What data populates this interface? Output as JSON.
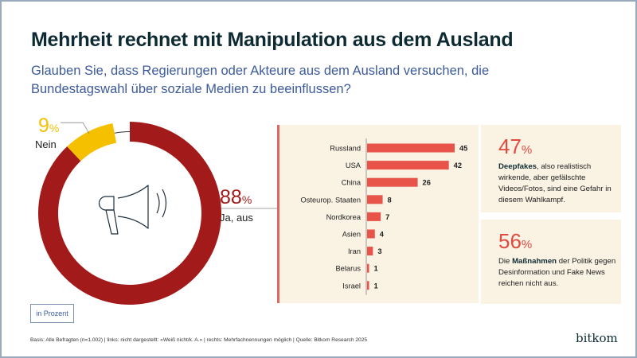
{
  "header": {
    "title": "Mehrheit rechnet mit Manipulation aus dem Ausland",
    "subtitle": "Glauben Sie, dass Regierungen oder Akteure aus dem Ausland versuchen, die Bundestagswahl über soziale Medien zu beeinflussen?"
  },
  "donut": {
    "icon": "megaphone-icon",
    "yes": {
      "value": "88",
      "pct": "%",
      "label": "Ja, aus"
    },
    "no": {
      "value": "9",
      "pct": "%",
      "label": "Nein"
    }
  },
  "cards": [
    {
      "value": "47",
      "pct": "%",
      "bold": "Deepfakes",
      "text_before": "",
      "text_after": ", also realistisch wirkende, aber gefälschte Videos/Fotos, sind eine Gefahr in diesem Wahlkampf."
    },
    {
      "value": "56",
      "pct": "%",
      "bold": "Maßnahmen",
      "text_before": "Die ",
      "text_after": " der Politik gegen Desinformation und Fake News reichen nicht aus."
    }
  ],
  "unit_label": "in Prozent",
  "footnote": "Basis: Alle Befragten (n=1.002) | links: nicht dargestellt: «Weiß nicht/k. A.» | rechts: Mehrfachnennungen möglich | Quelle: Bitkom Research 2025",
  "logo": "bitkom",
  "colors": {
    "yes": "#a31a1a",
    "no": "#f5c000",
    "bar": "#e8534a",
    "panel": "#faf2e3",
    "title": "#0e2a33",
    "subtitle": "#3d5a9a"
  },
  "chart_data": [
    {
      "type": "pie",
      "variant": "donut",
      "title": "Glauben Sie, dass Regierungen oder Akteure aus dem Ausland versuchen, die Bundestagswahl über soziale Medien zu beeinflussen?",
      "slices": [
        {
          "label": "Ja, aus",
          "value": 88,
          "color": "#a31a1a"
        },
        {
          "label": "Nein",
          "value": 9,
          "color": "#f5c000"
        },
        {
          "label": "Weiß nicht/k. A. (nicht dargestellt)",
          "value": 3,
          "color": "none"
        }
      ],
      "unit": "%"
    },
    {
      "type": "bar",
      "orientation": "horizontal",
      "title": "Ja, aus",
      "categories": [
        "Russland",
        "USA",
        "China",
        "Osteurop. Staaten",
        "Nordkorea",
        "Asien",
        "Iran",
        "Belarus",
        "Israel"
      ],
      "values": [
        45,
        42,
        26,
        8,
        7,
        4,
        3,
        1,
        1
      ],
      "xlim": [
        0,
        45
      ],
      "unit": "%",
      "grid": false,
      "color": "#e8534a"
    }
  ]
}
